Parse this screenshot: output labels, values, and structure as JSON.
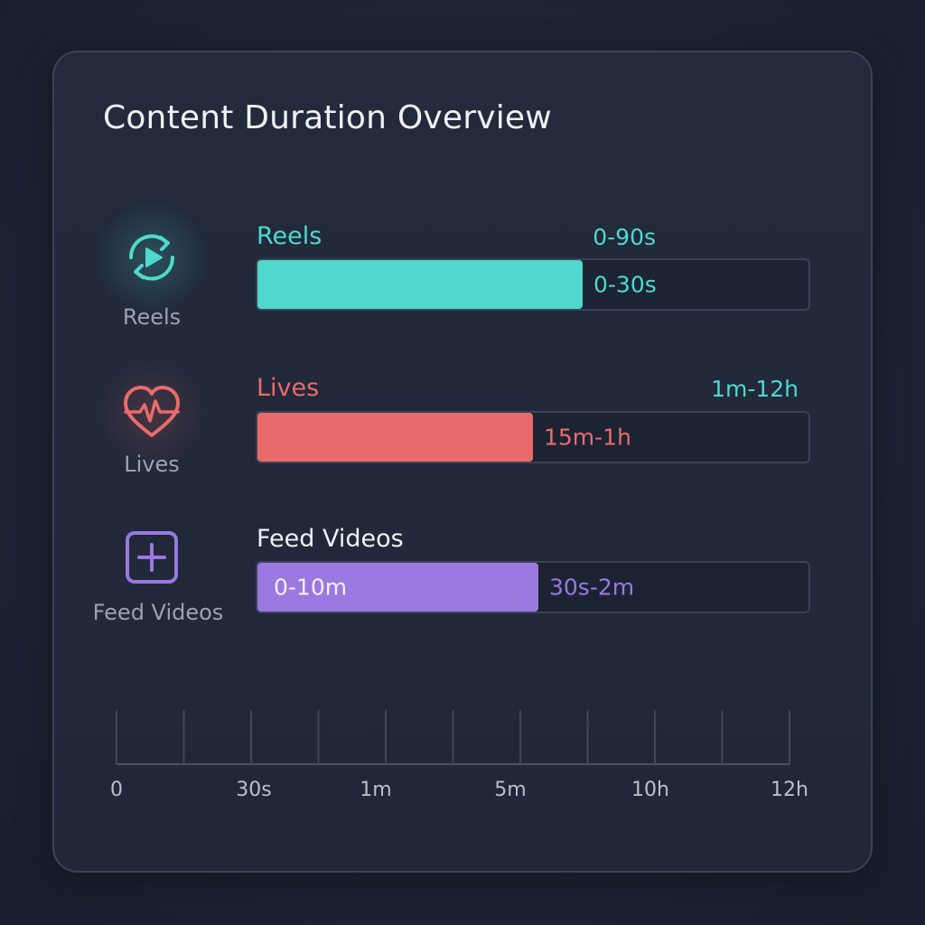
{
  "title": "Content Duration Overview",
  "colors": {
    "reels": "#4fd8cc",
    "lives": "#ea6b6b",
    "feed": "#9b78e0",
    "feed_name": "#eef1f6"
  },
  "rows": [
    {
      "icon": "reels-play-icon",
      "icon_label": "Reels",
      "name": "Reels",
      "range_label": "0-90s",
      "bar_label": "0-30s",
      "fill_fraction": 0.59
    },
    {
      "icon": "heart-pulse-icon",
      "icon_label": "Lives",
      "name": "Lives",
      "range_label": "1m-12h",
      "bar_label": "15m-1h",
      "fill_fraction": 0.5
    },
    {
      "icon": "plus-square-icon",
      "icon_label": "Feed Videos",
      "name": "Feed Videos",
      "range_label": "",
      "bar_label_inside": "0-10m",
      "bar_label": "30s-2m",
      "fill_fraction": 0.51
    }
  ],
  "axis": {
    "tick_labels": [
      "0",
      "30s",
      "1m",
      "5m",
      "10h",
      "12h"
    ],
    "minor_tick_count": 11
  },
  "chart_data": {
    "type": "bar",
    "title": "Content Duration Overview",
    "categories": [
      "Reels",
      "Lives",
      "Feed Videos"
    ],
    "series": [
      {
        "name": "",
        "values": [
          "0-30s",
          "15m-1h",
          "30s-2m"
        ]
      }
    ],
    "range_labels": [
      "0-90s",
      "1m-12h",
      "0-10m"
    ],
    "fill_fraction": [
      0.59,
      0.5,
      0.51
    ],
    "x_tick_labels": [
      "0",
      "30s",
      "1m",
      "5m",
      "10h",
      "12h"
    ],
    "grid": false,
    "legend": "none"
  }
}
